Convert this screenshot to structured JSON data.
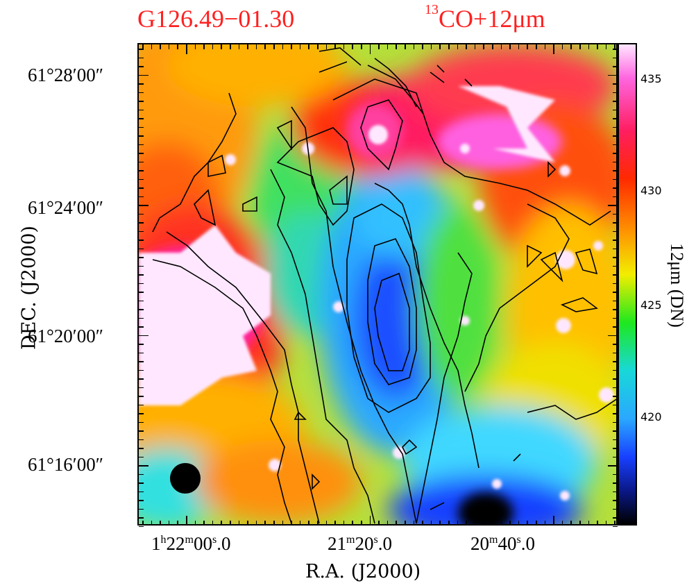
{
  "title": {
    "source": "G126.49−01.30",
    "tracer_sup": "13",
    "tracer_main": "CO+12μm"
  },
  "axes": {
    "xlabel": "R.A. (J2000)",
    "ylabel": "DEC. (J2000)",
    "xticks": [
      {
        "h": "1",
        "hsup": "h",
        "m": "22",
        "msup": "m",
        "s": "00",
        "ssup": "s",
        "frac": ".0"
      },
      {
        "h": "",
        "hsup": "",
        "m": "21",
        "msup": "m",
        "s": "20",
        "ssup": "s",
        "frac": ".0"
      },
      {
        "h": "",
        "hsup": "",
        "m": "20",
        "msup": "m",
        "s": "40",
        "ssup": "s",
        "frac": ".0"
      }
    ],
    "yticks": [
      "61°28′00″",
      "61°24′00″",
      "61°20′00″",
      "61°16′00″"
    ]
  },
  "colorbar": {
    "label": "12μm (DN)",
    "ticks": [
      "435",
      "430",
      "425",
      "420"
    ],
    "range": [
      415,
      437
    ],
    "colors": [
      "#000000",
      "#0a1888",
      "#1840ff",
      "#2aa8ff",
      "#18d8d8",
      "#1ee81e",
      "#f2ee00",
      "#ff8a00",
      "#ff2a00",
      "#ff1e60",
      "#ff66e0",
      "#ffe6ff"
    ]
  },
  "chart_data": {
    "type": "heatmap",
    "title": "G126.49−01.30   13CO+12μm",
    "xlabel": "R.A. (J2000)",
    "ylabel": "DEC. (J2000)",
    "x_tick_labels": [
      "1h22m00s.0",
      "21m20s.0",
      "20m40s.0"
    ],
    "y_tick_labels": [
      "61°28′00″",
      "61°24′00″",
      "61°20′00″",
      "61°16′00″"
    ],
    "colorbar_label": "12μm (DN)",
    "colorbar_ticks": [
      435,
      430,
      425,
      420
    ],
    "colorbar_range": [
      415,
      437
    ],
    "contours": "13CO integrated intensity (black lines)",
    "beam": "filled black circle, lower-left"
  }
}
